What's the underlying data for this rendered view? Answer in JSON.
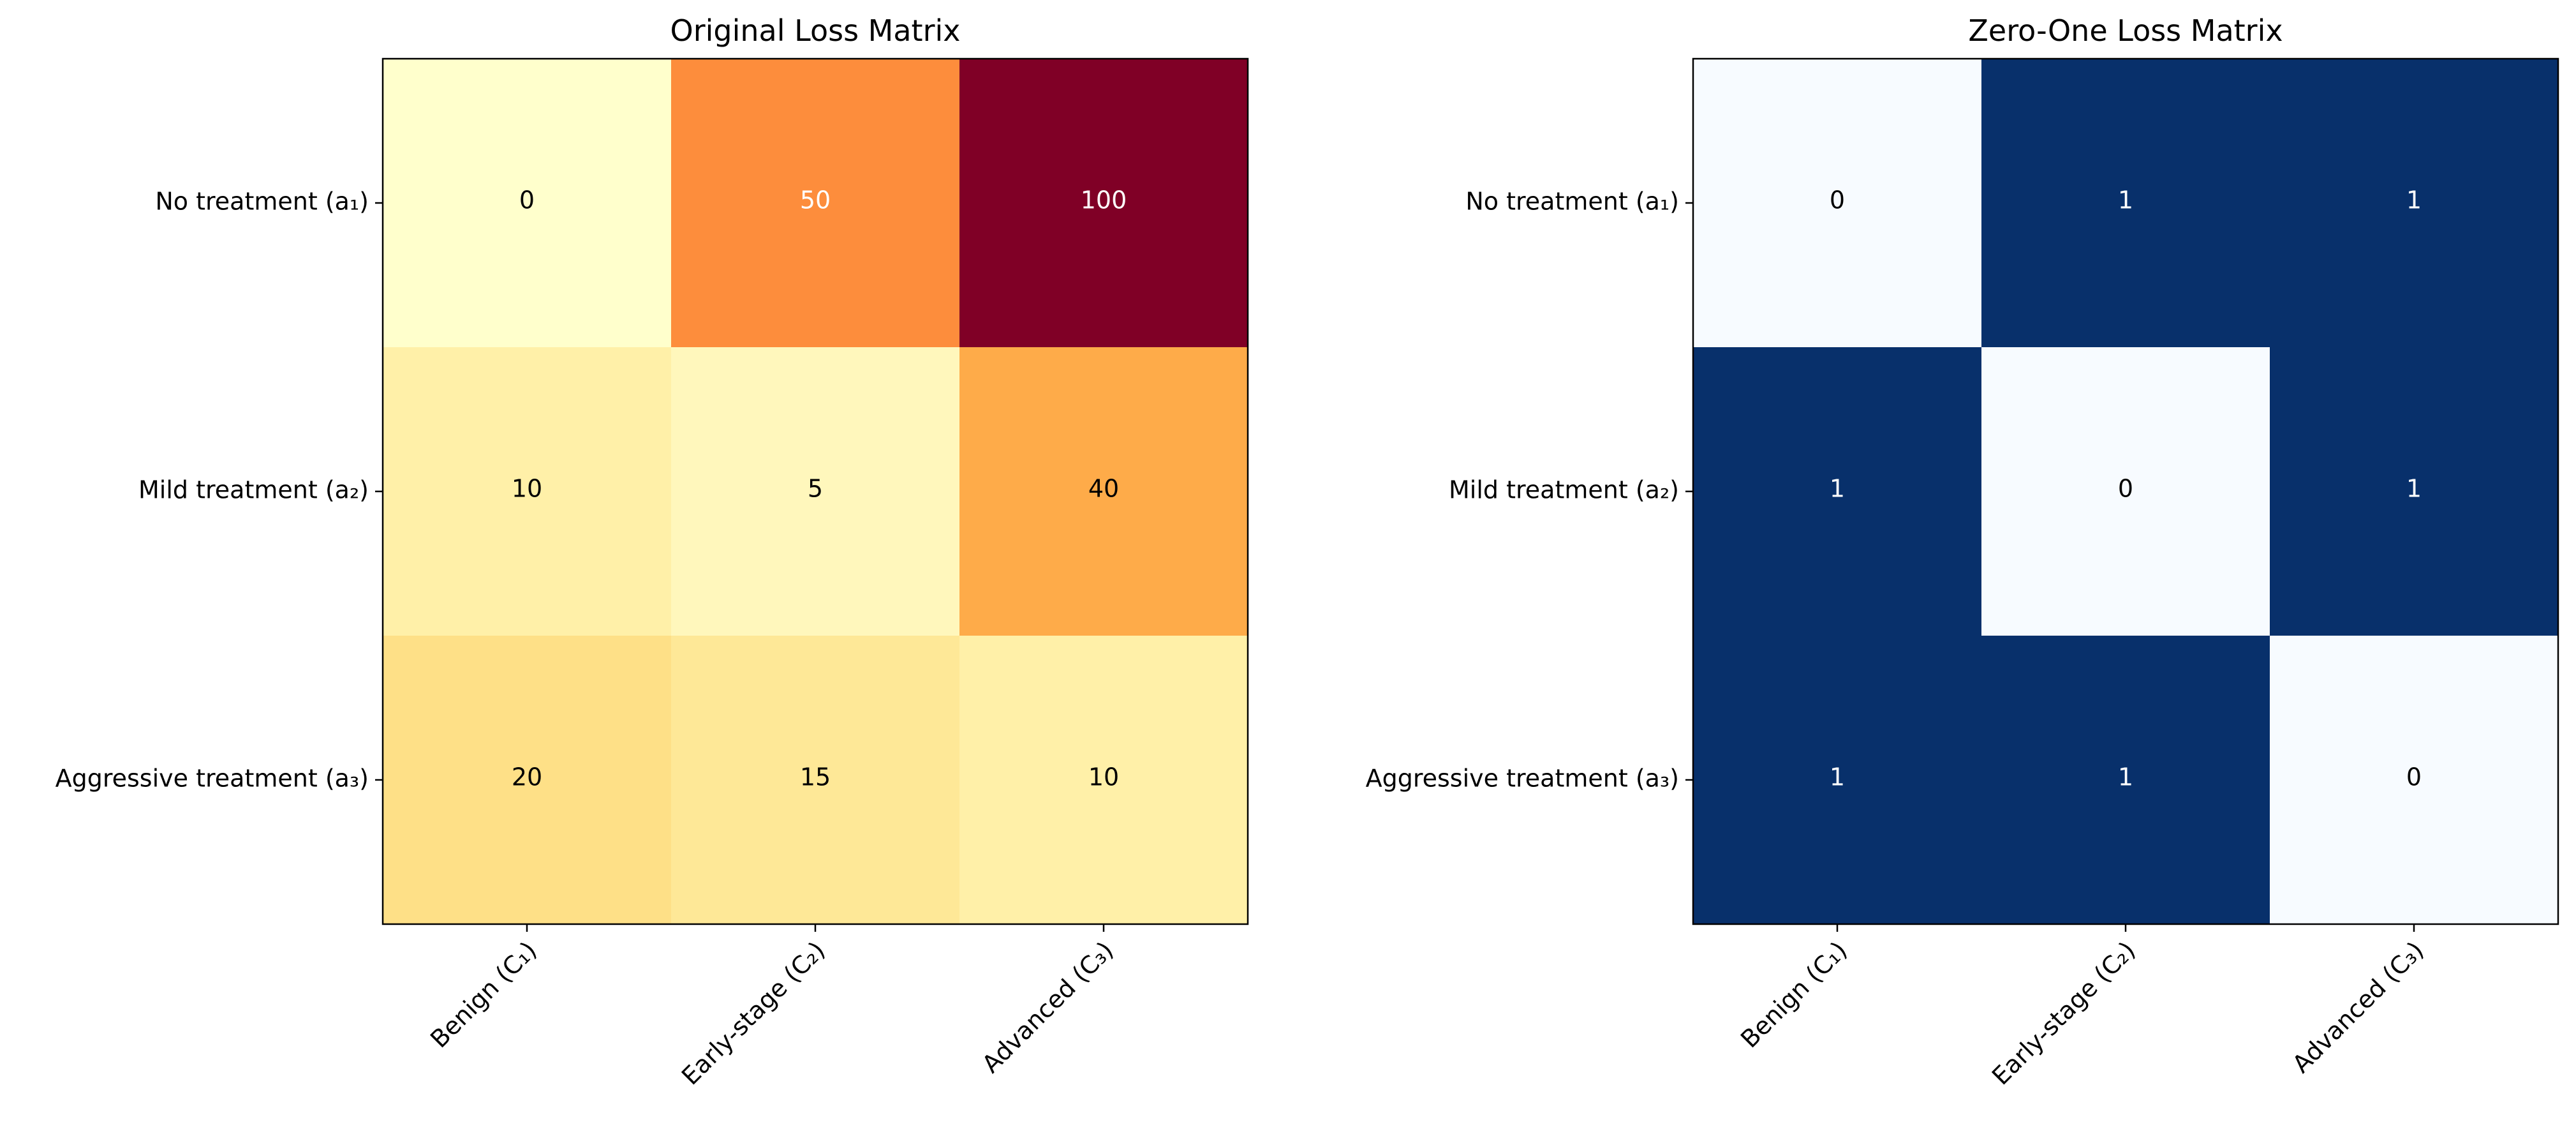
{
  "chart_data": [
    {
      "type": "heatmap",
      "title": "Original Loss Matrix",
      "rows": [
        "No treatment (a₁)",
        "Mild treatment (a₂)",
        "Aggressive treatment (a₃)"
      ],
      "columns": [
        "Benign (C₁)",
        "Early-stage (C₂)",
        "Advanced (C₃)"
      ],
      "values": [
        [
          0,
          50,
          100
        ],
        [
          10,
          5,
          40
        ],
        [
          20,
          15,
          10
        ]
      ],
      "colormap": "YlOrRd",
      "vmin": 0,
      "vmax": 100,
      "cell_colors": [
        [
          "#ffffcc",
          "#fd8d3c",
          "#800026"
        ],
        [
          "#fff0a8",
          "#fff7bc",
          "#feab49"
        ],
        [
          "#fee087",
          "#fee897",
          "#fff0a8"
        ]
      ],
      "annotation_colors": [
        [
          "#000000",
          "#ffffff",
          "#ffffff"
        ],
        [
          "#000000",
          "#000000",
          "#000000"
        ],
        [
          "#000000",
          "#000000",
          "#000000"
        ]
      ]
    },
    {
      "type": "heatmap",
      "title": "Zero-One Loss Matrix",
      "rows": [
        "No treatment (a₁)",
        "Mild treatment (a₂)",
        "Aggressive treatment (a₃)"
      ],
      "columns": [
        "Benign (C₁)",
        "Early-stage (C₂)",
        "Advanced (C₃)"
      ],
      "values": [
        [
          0,
          1,
          1
        ],
        [
          1,
          0,
          1
        ],
        [
          1,
          1,
          0
        ]
      ],
      "colormap": "Blues",
      "vmin": 0,
      "vmax": 1,
      "cell_colors": [
        [
          "#f7fbff",
          "#08306b",
          "#08306b"
        ],
        [
          "#08306b",
          "#f7fbff",
          "#08306b"
        ],
        [
          "#08306b",
          "#08306b",
          "#f7fbff"
        ]
      ],
      "annotation_colors": [
        [
          "#000000",
          "#ffffff",
          "#ffffff"
        ],
        [
          "#ffffff",
          "#000000",
          "#ffffff"
        ],
        [
          "#ffffff",
          "#ffffff",
          "#000000"
        ]
      ]
    }
  ]
}
